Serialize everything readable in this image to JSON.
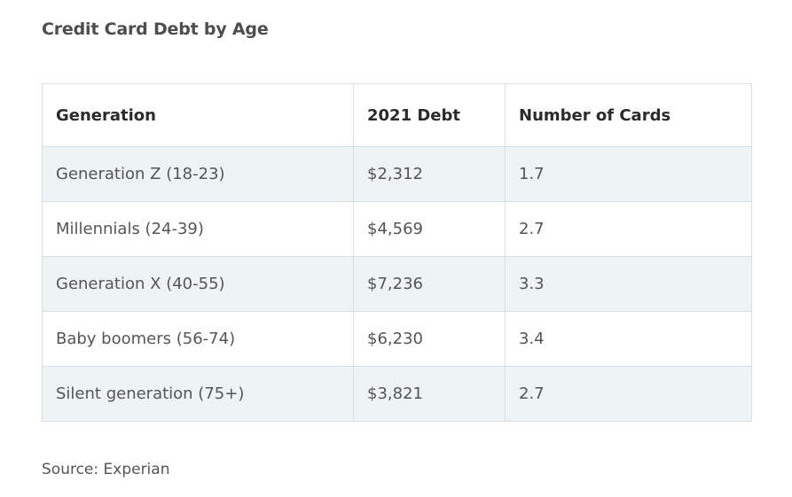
{
  "title": "Credit Card Debt by Age",
  "table": {
    "headers": [
      "Generation",
      "2021 Debt",
      "Number of Cards"
    ],
    "rows": [
      [
        "Generation Z (18-23)",
        "$2,312",
        "1.7"
      ],
      [
        "Millennials (24-39)",
        "$4,569",
        "2.7"
      ],
      [
        "Generation X (40-55)",
        "$7,236",
        "3.3"
      ],
      [
        "Baby boomers (56-74)",
        "$6,230",
        "3.4"
      ],
      [
        "Silent generation (75+)",
        "$3,821",
        "2.7"
      ]
    ]
  },
  "source": "Source: Experian",
  "colors": {
    "stripe": "#eef3f6",
    "border": "#d9dee2",
    "title": "#4d4d4d"
  }
}
